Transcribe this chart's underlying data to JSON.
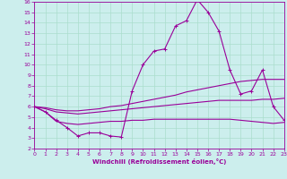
{
  "xlabel": "Windchill (Refroidissement éolien,°C)",
  "background_color": "#cceeed",
  "grid_color": "#aaddcc",
  "line_color": "#990099",
  "xmin": 0,
  "xmax": 23,
  "ymin": 2,
  "ymax": 16,
  "xticks": [
    0,
    1,
    2,
    3,
    4,
    5,
    6,
    7,
    8,
    9,
    10,
    11,
    12,
    13,
    14,
    15,
    16,
    17,
    18,
    19,
    20,
    21,
    22,
    23
  ],
  "yticks": [
    2,
    3,
    4,
    5,
    6,
    7,
    8,
    9,
    10,
    11,
    12,
    13,
    14,
    15,
    16
  ],
  "line1_x": [
    0,
    1,
    2,
    3,
    4,
    5,
    6,
    7,
    8,
    9,
    10,
    11,
    12,
    13,
    14,
    15,
    16,
    17,
    18,
    19,
    20,
    21,
    22,
    23
  ],
  "line1_y": [
    6.0,
    5.5,
    4.7,
    4.0,
    3.2,
    3.5,
    3.5,
    3.2,
    3.1,
    7.5,
    10.0,
    11.3,
    11.5,
    13.7,
    14.2,
    16.2,
    15.0,
    13.2,
    9.5,
    7.2,
    7.5,
    9.5,
    6.0,
    4.7
  ],
  "line2_x": [
    0,
    1,
    2,
    3,
    4,
    5,
    6,
    7,
    8,
    9,
    10,
    11,
    12,
    13,
    14,
    15,
    16,
    17,
    18,
    19,
    20,
    21,
    22,
    23
  ],
  "line2_y": [
    6.0,
    5.9,
    5.7,
    5.6,
    5.6,
    5.7,
    5.8,
    6.0,
    6.1,
    6.3,
    6.5,
    6.7,
    6.9,
    7.1,
    7.4,
    7.6,
    7.8,
    8.0,
    8.2,
    8.4,
    8.5,
    8.6,
    8.6,
    8.6
  ],
  "line3_x": [
    0,
    1,
    2,
    3,
    4,
    5,
    6,
    7,
    8,
    9,
    10,
    11,
    12,
    13,
    14,
    15,
    16,
    17,
    18,
    19,
    20,
    21,
    22,
    23
  ],
  "line3_y": [
    6.0,
    5.8,
    5.5,
    5.4,
    5.3,
    5.4,
    5.5,
    5.6,
    5.7,
    5.8,
    5.9,
    6.0,
    6.1,
    6.2,
    6.3,
    6.4,
    6.5,
    6.6,
    6.6,
    6.6,
    6.6,
    6.7,
    6.7,
    6.8
  ],
  "line4_x": [
    0,
    1,
    2,
    3,
    4,
    5,
    6,
    7,
    8,
    9,
    10,
    11,
    12,
    13,
    14,
    15,
    16,
    17,
    18,
    19,
    20,
    21,
    22,
    23
  ],
  "line4_y": [
    6.0,
    5.5,
    4.6,
    4.4,
    4.3,
    4.4,
    4.5,
    4.6,
    4.6,
    4.7,
    4.7,
    4.8,
    4.8,
    4.8,
    4.8,
    4.8,
    4.8,
    4.8,
    4.8,
    4.7,
    4.6,
    4.5,
    4.4,
    4.5
  ]
}
